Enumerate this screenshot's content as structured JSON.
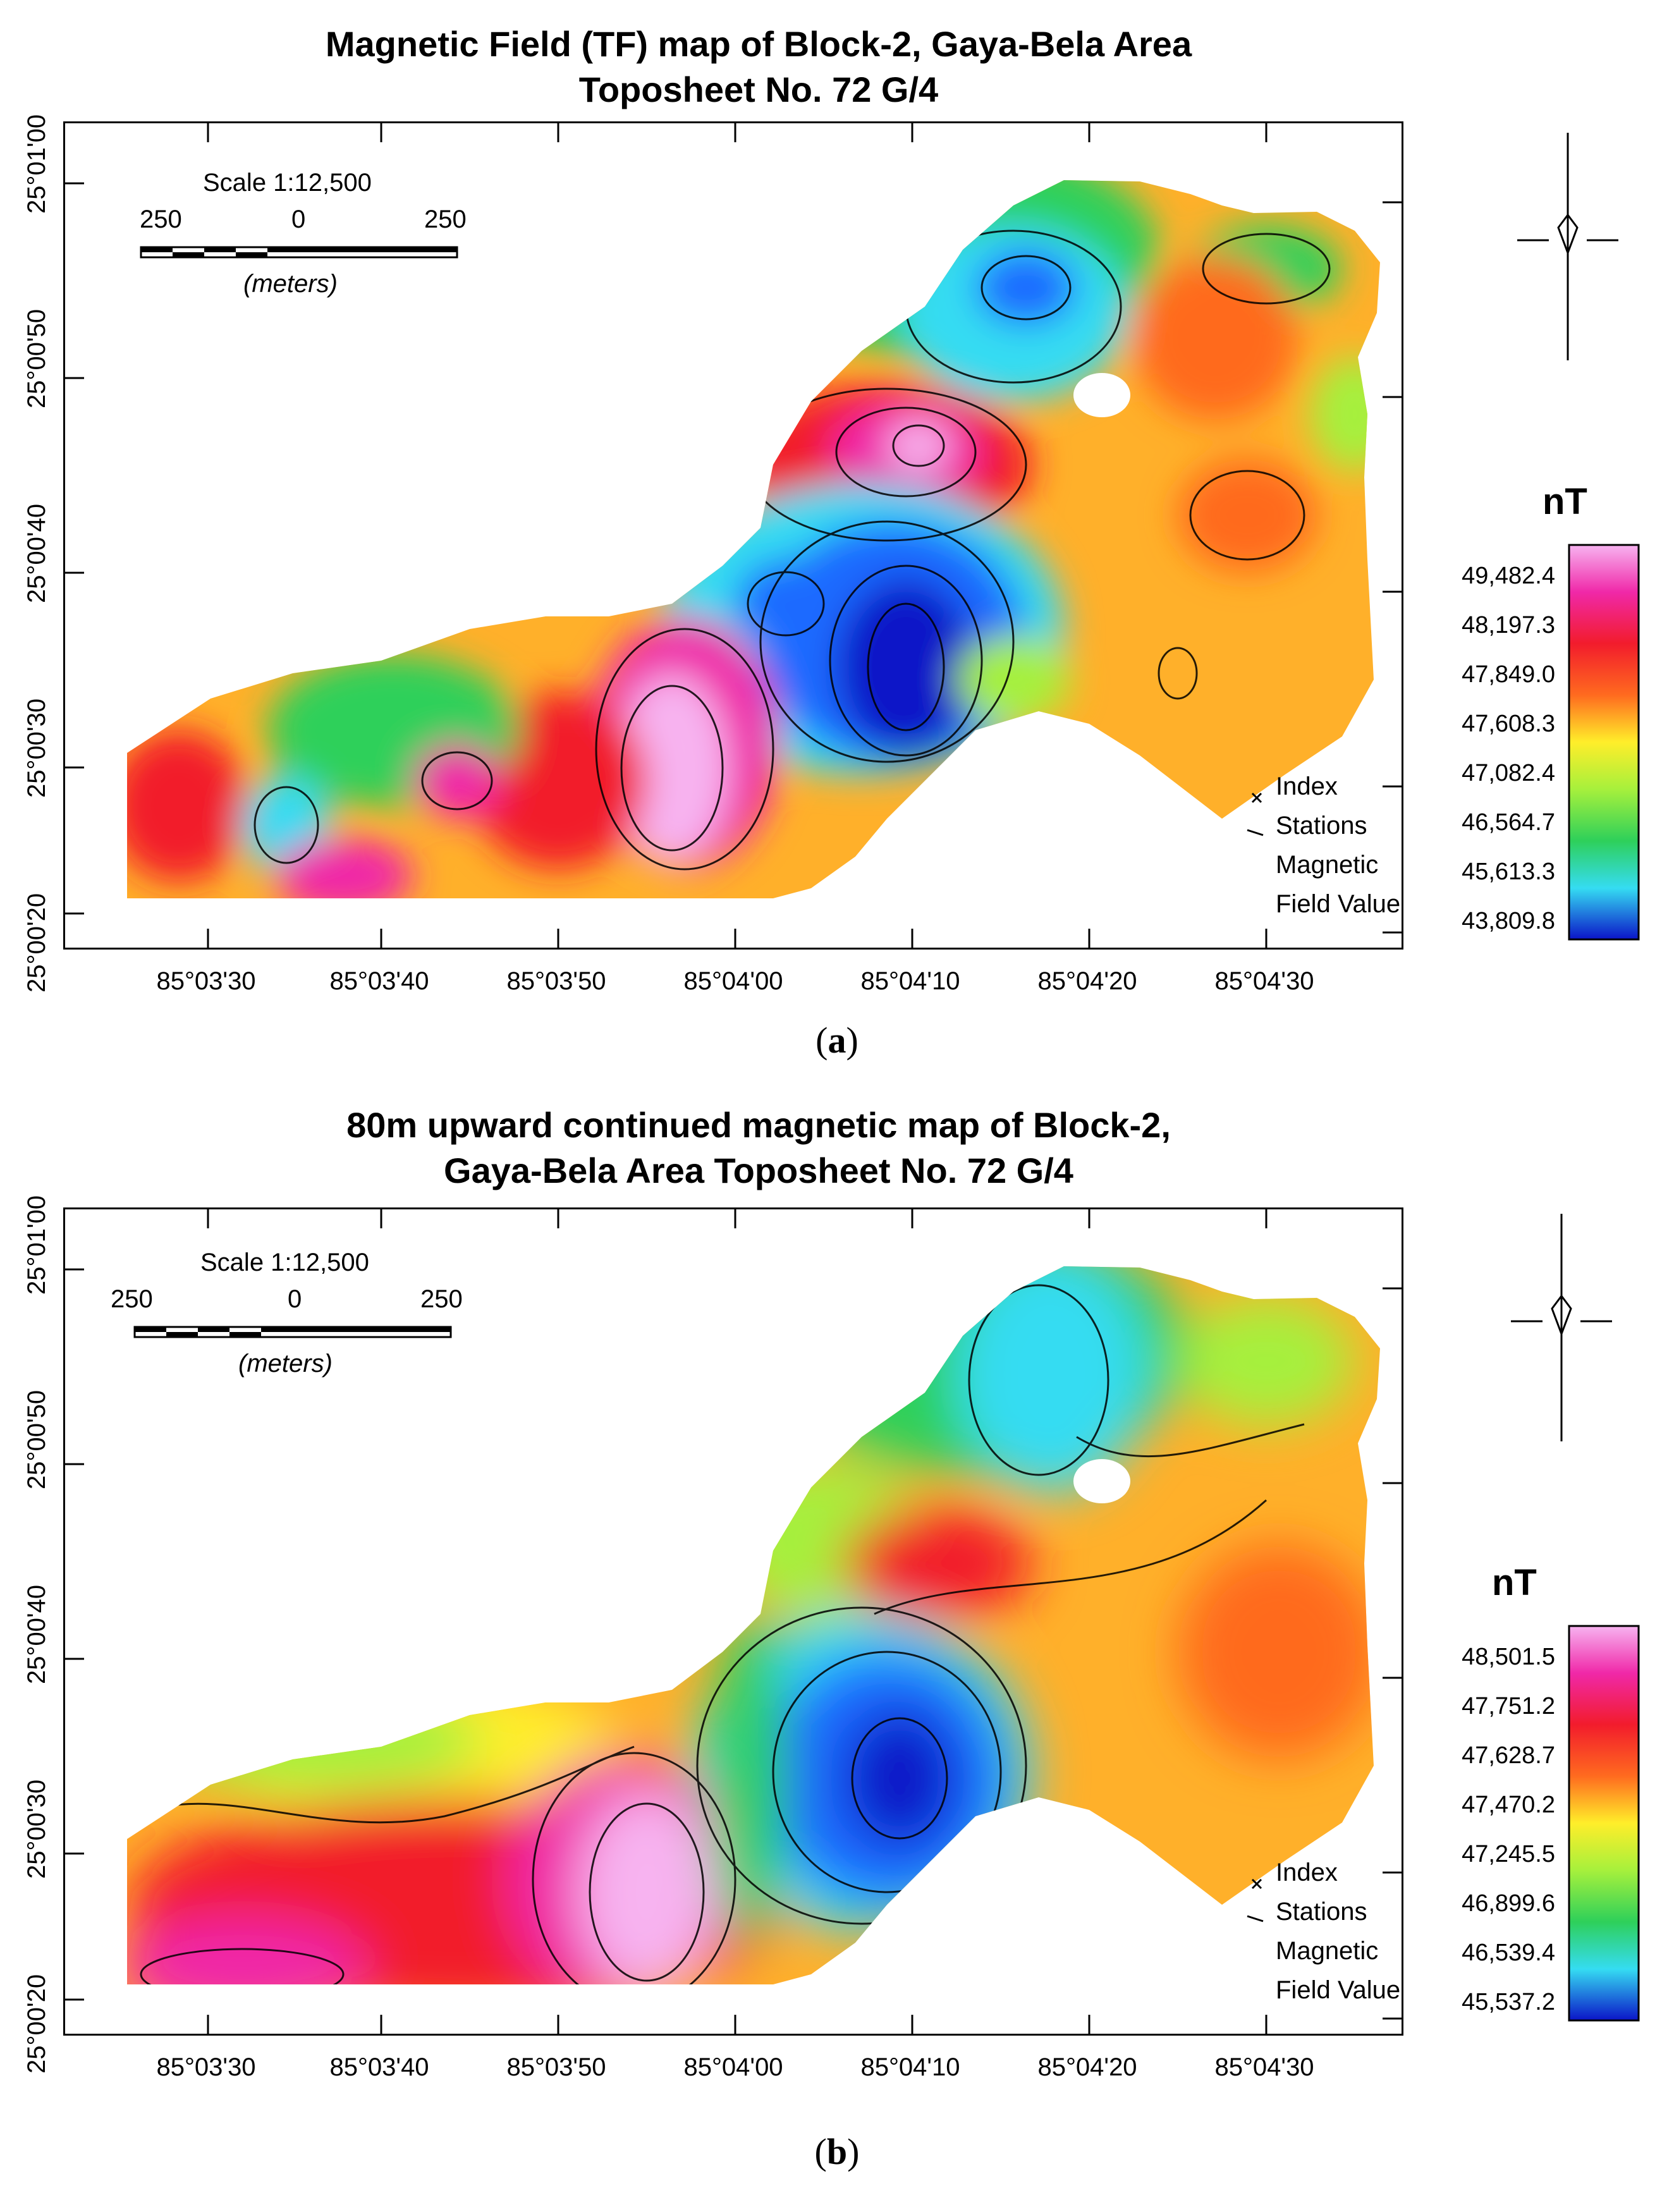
{
  "colors": {
    "dark_blue": "#0b14c8",
    "blue": "#1f6bff",
    "cyan": "#35dcf2",
    "green": "#2ed05a",
    "light_green": "#a6f03c",
    "yellow": "#ffee2a",
    "orange": "#ffb02a",
    "deep_orange": "#ff6a1f",
    "red": "#f21c2c",
    "magenta": "#f028a8",
    "pink": "#f7b3f0"
  },
  "panels": [
    {
      "id": "a",
      "title_line1": "Magnetic Field (TF) map of Block-2, Gaya-Bela Area",
      "title_line2": "Toposheet No. 72 G/4",
      "caption_letter": "a",
      "legend_unit": "nT",
      "legend_values": [
        "49,482.4",
        "48,197.3",
        "47,849.0",
        "47,608.3",
        "47,082.4",
        "46,564.7",
        "45,613.3",
        "43,809.8"
      ]
    },
    {
      "id": "b",
      "title_line1": "80m upward continued magnetic map of Block-2,",
      "title_line2": "Gaya-Bela Area  Toposheet No. 72 G/4",
      "caption_letter": "b",
      "legend_unit": "nT",
      "legend_values": [
        "48,501.5",
        "47,751.2",
        "47,628.7",
        "47,470.2",
        "47,245.5",
        "46,899.6",
        "46,539.4",
        "45,537.2"
      ]
    }
  ],
  "latitude_ticks": [
    "25°01'00",
    "25°00'50",
    "25°00'40",
    "25°00'30",
    "25°00'20"
  ],
  "longitude_ticks": [
    "85°03'30",
    "85°03'40",
    "85°03'50",
    "85°04'00",
    "85°04'10",
    "85°04'20",
    "85°04'30"
  ],
  "scale_bar": {
    "ratio": "Scale 1:12,500",
    "left": "250",
    "center": "0",
    "right": "250",
    "unit": "(meters)"
  },
  "index": {
    "title": "Index",
    "stations": "Stations",
    "field_line1": "Magnetic",
    "field_line2": "Field Value"
  }
}
